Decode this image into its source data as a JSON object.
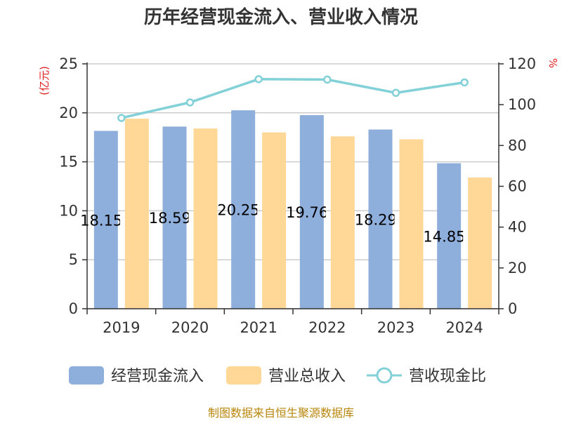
{
  "chart_data": {
    "type": "bar",
    "title": "历年经营现金流入、营业收入情况",
    "categories": [
      "2019",
      "2020",
      "2021",
      "2022",
      "2023",
      "2024"
    ],
    "series": [
      {
        "name": "经营现金流入",
        "type": "bar",
        "axis": "left",
        "values": [
          18.157,
          18.597,
          20.258,
          19.762,
          18.295,
          14.852
        ],
        "labels": [
          "18.157",
          "18.597",
          "20.258",
          "19.762",
          "18.295",
          "14.852"
        ],
        "color": "#8eaedb"
      },
      {
        "name": "营业总收入",
        "type": "bar",
        "axis": "left",
        "values": [
          19.4,
          18.4,
          18.0,
          17.6,
          17.3,
          13.4
        ],
        "color": "#ffd898"
      },
      {
        "name": "营收现金比",
        "type": "line",
        "axis": "right",
        "values": [
          93.5,
          101.1,
          112.5,
          112.3,
          105.8,
          110.9
        ],
        "color": "#82d0d8"
      }
    ],
    "y_left": {
      "label": "(亿元)",
      "ylim": [
        0,
        25
      ],
      "ticks": [
        "0",
        "5",
        "10",
        "15",
        "20",
        "25"
      ]
    },
    "y_right": {
      "label": "%",
      "ylim": [
        0,
        120
      ],
      "ticks": [
        "0",
        "20",
        "40",
        "60",
        "80",
        "100",
        "120"
      ]
    },
    "grid": true,
    "legend_position": "bottom",
    "source": "制图数据来自恒生聚源数据库",
    "colors": {
      "title": "#333333",
      "axis": "#333333",
      "grid": "#cccccc",
      "unit": "#e02020",
      "source": "#b8860b"
    }
  }
}
